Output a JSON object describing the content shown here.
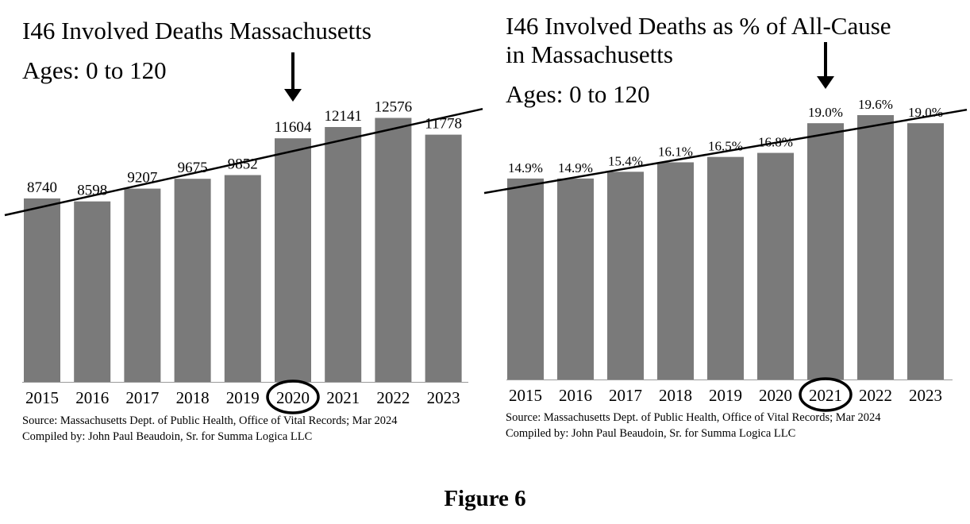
{
  "figure_caption": "Figure 6",
  "panels": [
    {
      "title": "I46 Involved Deaths Massachusetts",
      "subtitle": "Ages:  0 to 120",
      "source": "Source:  Massachusetts Dept. of Public Health, Office of Vital Records; Mar 2024",
      "compiled_by": "Compiled by:  John Paul Beaudoin, Sr. for Summa Logica LLC",
      "circled_category": "2020",
      "arrow_category": "2020"
    },
    {
      "title": "I46 Involved Deaths as % of All-Cause",
      "title_line2": "in Massachusetts",
      "subtitle": "Ages:  0 to 120",
      "source": "Source:  Massachusetts Dept. of Public Health, Office of Vital Records; Mar 2024",
      "compiled_by": "Compiled by:  John Paul Beaudoin, Sr. for Summa Logica LLC",
      "circled_category": "2021",
      "arrow_category": "2021"
    }
  ],
  "chart_data": [
    {
      "type": "bar",
      "title": "I46 Involved Deaths Massachusetts",
      "subtitle": "Ages:  0 to 120",
      "categories": [
        "2015",
        "2016",
        "2017",
        "2018",
        "2019",
        "2020",
        "2021",
        "2022",
        "2023"
      ],
      "values": [
        8740,
        8598,
        9207,
        9675,
        9852,
        11604,
        12141,
        12576,
        11778
      ],
      "value_labels": [
        "8740",
        "8598",
        "9207",
        "9675",
        "9852",
        "11604",
        "12141",
        "12576",
        "11778"
      ],
      "ylim": [
        0,
        13200
      ],
      "trendline": {
        "type": "linear",
        "color": "#000000"
      },
      "bar_color": "#7a7a7a",
      "grid": false,
      "legend": "none"
    },
    {
      "type": "bar",
      "title": "I46 Involved Deaths as % of All-Cause in Massachusetts",
      "subtitle": "Ages:  0 to 120",
      "categories": [
        "2015",
        "2016",
        "2017",
        "2018",
        "2019",
        "2020",
        "2021",
        "2022",
        "2023"
      ],
      "values": [
        14.9,
        14.9,
        15.4,
        16.1,
        16.5,
        16.8,
        19.0,
        19.6,
        19.0
      ],
      "value_labels": [
        "14.9%",
        "14.9%",
        "15.4%",
        "16.1%",
        "16.5%",
        "16.8%",
        "19.0%",
        "19.6%",
        "19.0%"
      ],
      "ylim": [
        0,
        20.6
      ],
      "trendline": {
        "type": "linear",
        "color": "#000000"
      },
      "bar_color": "#7a7a7a",
      "grid": false,
      "legend": "none"
    }
  ]
}
